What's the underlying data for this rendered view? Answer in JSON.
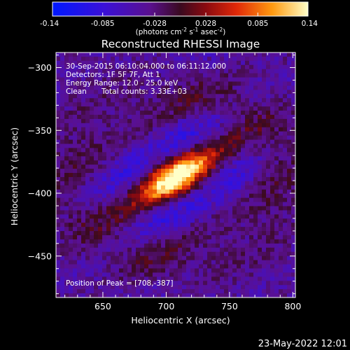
{
  "colorbar": {
    "ticks": [
      "-0.14",
      "-0.085",
      "-0.028",
      "0.028",
      "0.085",
      "0.14"
    ],
    "range": [
      -0.14,
      0.14
    ],
    "unit_label_main": "(photons cm",
    "unit_label_exp1": "-2",
    "unit_label_s": " s",
    "unit_label_exp2": "-1",
    "unit_label_asec": " asec",
    "unit_label_exp3": "-2",
    "unit_label_close": ")"
  },
  "chart": {
    "title": "Reconstructed RHESSI Image",
    "xlabel": "Heliocentric X (arcsec)",
    "ylabel": "Heliocentric Y (arcsec)",
    "x_ticks": [
      "650",
      "700",
      "750",
      "800"
    ],
    "y_ticks": [
      "-300",
      "-350",
      "-400",
      "-450"
    ]
  },
  "annotations": {
    "time_range": "30-Sep-2015 06:10:04.000 to 06:11:12.000",
    "detectors": "Detectors: 1F 5F 7F, Att 1",
    "energy": "Energy Range: 12.0 - 25.0 keV",
    "clean": "Clean",
    "counts": "Total counts: 3.33E+03",
    "peak": "Position of Peak = [708,-387]"
  },
  "footer": {
    "date": "23-May-2022 12:01"
  },
  "chart_data": {
    "type": "heatmap",
    "title": "Reconstructed RHESSI Image",
    "xlabel": "Heliocentric X (arcsec)",
    "ylabel": "Heliocentric Y (arcsec)",
    "xlim": [
      613,
      802
    ],
    "ylim": [
      -483,
      -288
    ],
    "color_range": [
      -0.14,
      0.14
    ],
    "peak": {
      "x": 708,
      "y": -387,
      "value": 0.14
    },
    "grid": false
  }
}
